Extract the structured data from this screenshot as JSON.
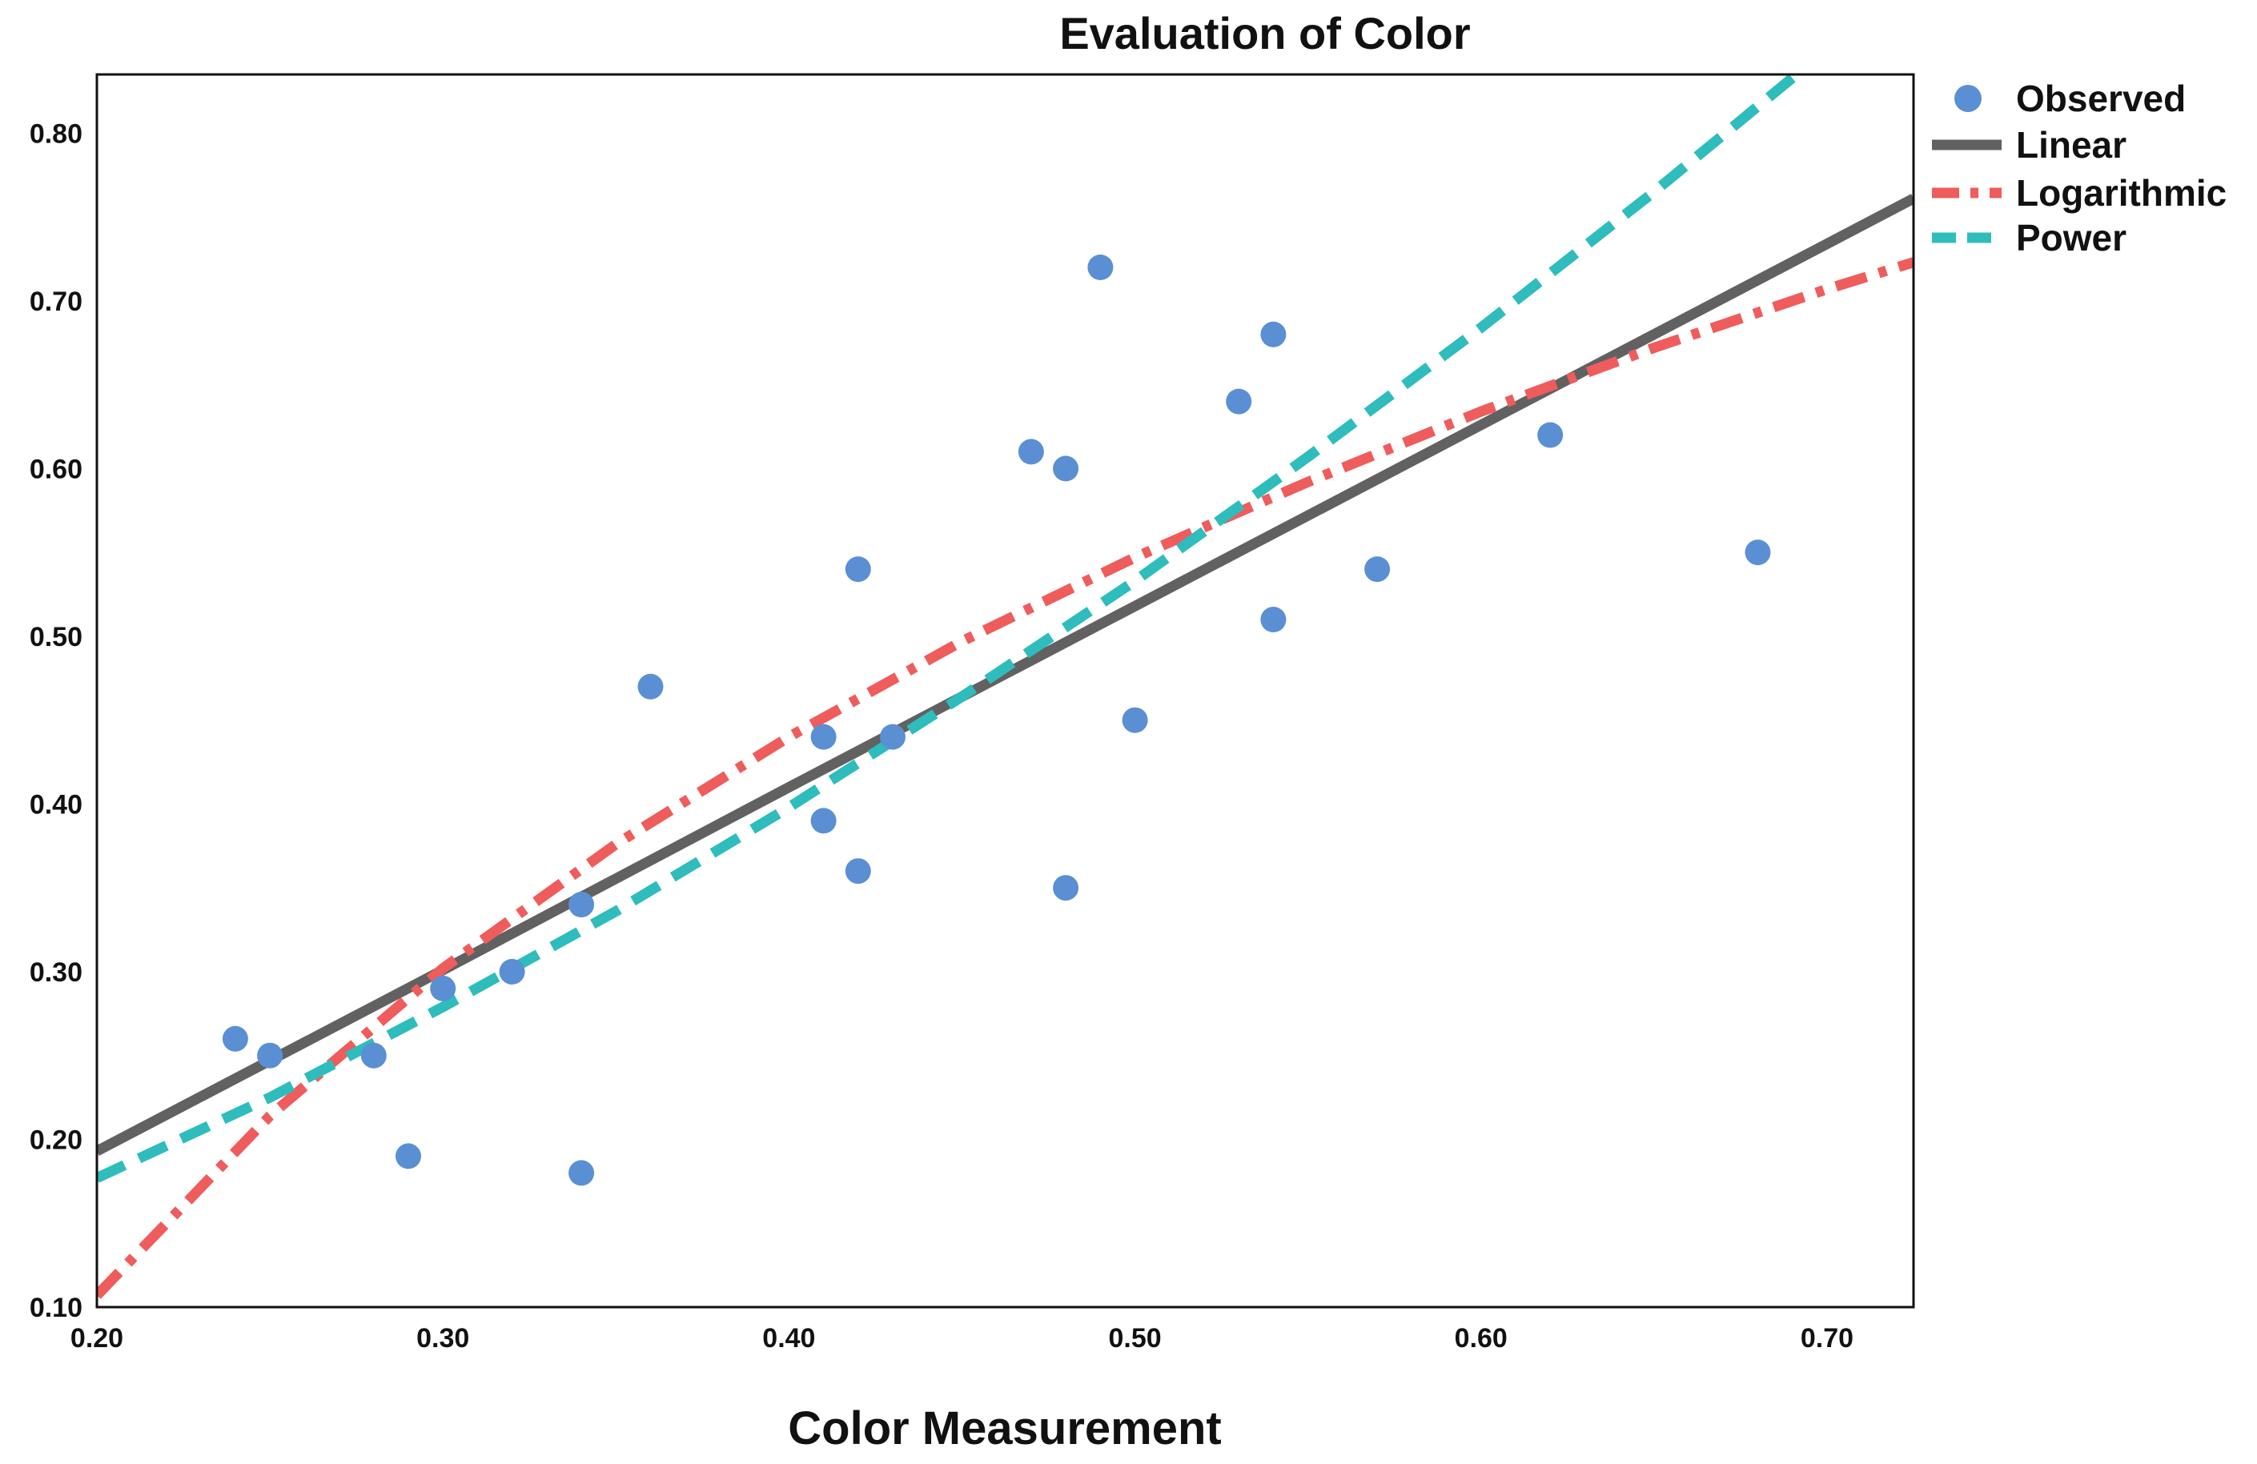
{
  "chart_data": {
    "type": "scatter",
    "title": "Evaluation of Color",
    "xlabel": "Color Measurement",
    "ylabel": "",
    "xlim": [
      0.2,
      0.725
    ],
    "ylim": [
      0.1,
      0.835
    ],
    "x_ticks": [
      "0.20",
      "0.30",
      "0.40",
      "0.50",
      "0.60",
      "0.70"
    ],
    "y_ticks": [
      "0.10",
      "0.20",
      "0.30",
      "0.40",
      "0.50",
      "0.60",
      "0.70",
      "0.80"
    ],
    "grid": false,
    "legend_position": "top-right-outside",
    "series": [
      {
        "name": "Observed",
        "kind": "points",
        "color": "#5b8fd3",
        "points": [
          [
            0.24,
            0.26
          ],
          [
            0.25,
            0.25
          ],
          [
            0.28,
            0.25
          ],
          [
            0.29,
            0.19
          ],
          [
            0.3,
            0.29
          ],
          [
            0.32,
            0.3
          ],
          [
            0.34,
            0.34
          ],
          [
            0.34,
            0.18
          ],
          [
            0.36,
            0.47
          ],
          [
            0.41,
            0.44
          ],
          [
            0.41,
            0.39
          ],
          [
            0.42,
            0.54
          ],
          [
            0.42,
            0.36
          ],
          [
            0.43,
            0.44
          ],
          [
            0.47,
            0.61
          ],
          [
            0.48,
            0.6
          ],
          [
            0.48,
            0.35
          ],
          [
            0.49,
            0.72
          ],
          [
            0.5,
            0.45
          ],
          [
            0.53,
            0.64
          ],
          [
            0.54,
            0.68
          ],
          [
            0.54,
            0.51
          ],
          [
            0.57,
            0.54
          ],
          [
            0.62,
            0.62
          ],
          [
            0.68,
            0.55
          ]
        ]
      },
      {
        "name": "Linear",
        "kind": "line",
        "style": "solid",
        "color": "#616161",
        "points": [
          [
            0.2,
            0.193
          ],
          [
            0.3,
            0.301
          ],
          [
            0.4,
            0.41
          ],
          [
            0.5,
            0.518
          ],
          [
            0.6,
            0.626
          ],
          [
            0.7,
            0.734
          ],
          [
            0.725,
            0.761
          ]
        ]
      },
      {
        "name": "Logarithmic",
        "kind": "line",
        "style": "dash-dot",
        "color": "#ef5c5c",
        "points": [
          [
            0.2,
            0.107
          ],
          [
            0.25,
            0.214
          ],
          [
            0.3,
            0.302
          ],
          [
            0.35,
            0.376
          ],
          [
            0.4,
            0.44
          ],
          [
            0.45,
            0.497
          ],
          [
            0.5,
            0.547
          ],
          [
            0.55,
            0.592
          ],
          [
            0.6,
            0.634
          ],
          [
            0.65,
            0.672
          ],
          [
            0.7,
            0.707
          ],
          [
            0.725,
            0.723
          ]
        ]
      },
      {
        "name": "Power",
        "kind": "line",
        "style": "dashed",
        "color": "#2fbcbc",
        "points": [
          [
            0.2,
            0.177
          ],
          [
            0.25,
            0.225
          ],
          [
            0.3,
            0.279
          ],
          [
            0.35,
            0.336
          ],
          [
            0.4,
            0.398
          ],
          [
            0.45,
            0.464
          ],
          [
            0.5,
            0.533
          ],
          [
            0.55,
            0.607
          ],
          [
            0.6,
            0.684
          ],
          [
            0.65,
            0.765
          ],
          [
            0.7,
            0.85
          ],
          [
            0.725,
            0.893
          ]
        ]
      }
    ]
  }
}
